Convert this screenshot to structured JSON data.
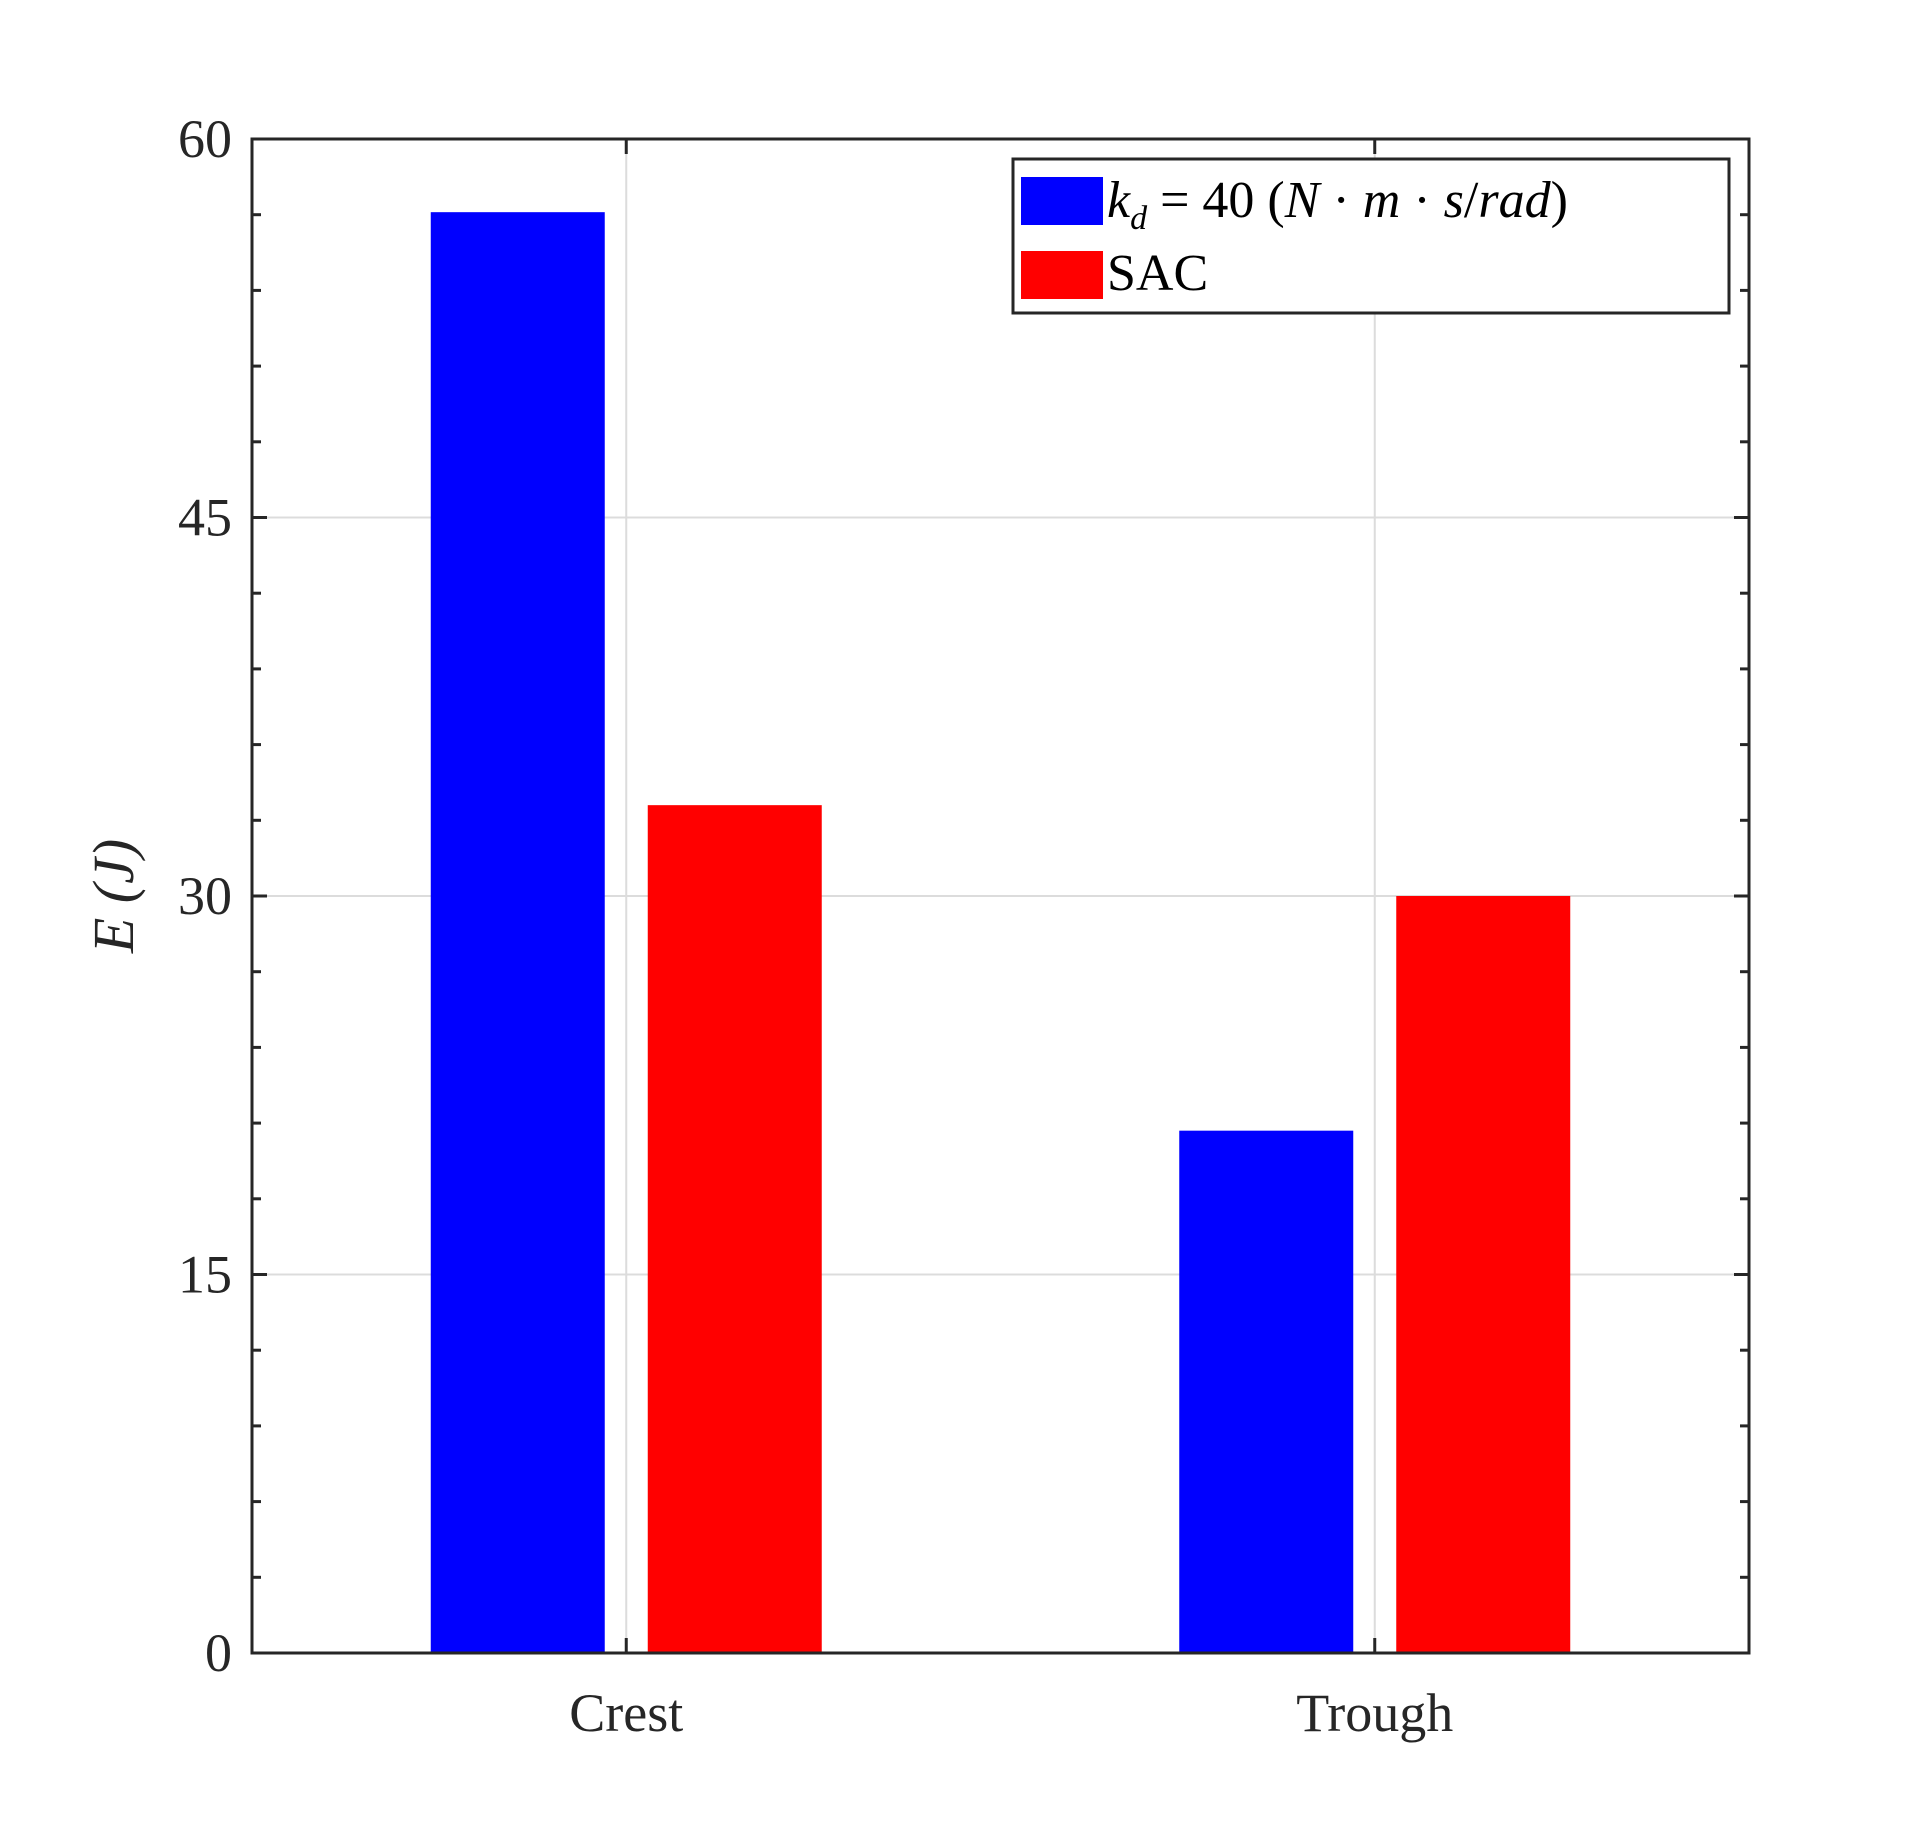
{
  "chart_data": {
    "type": "bar",
    "categories": [
      "Crest",
      "Trough"
    ],
    "series": [
      {
        "name": "k_d = 40 (N·m·s/rad)",
        "values": [
          57.1,
          20.7
        ],
        "color": "#0000ff"
      },
      {
        "name": "SAC",
        "values": [
          33.6,
          30.0
        ],
        "color": "#ff0000"
      }
    ],
    "ylabel": "E (J)",
    "xlabel": "",
    "ylim": [
      0,
      60
    ],
    "yticks": [
      0,
      15,
      30,
      45,
      60
    ],
    "y_minor_step": 3,
    "grid": true,
    "legend_position": "top-right"
  }
}
